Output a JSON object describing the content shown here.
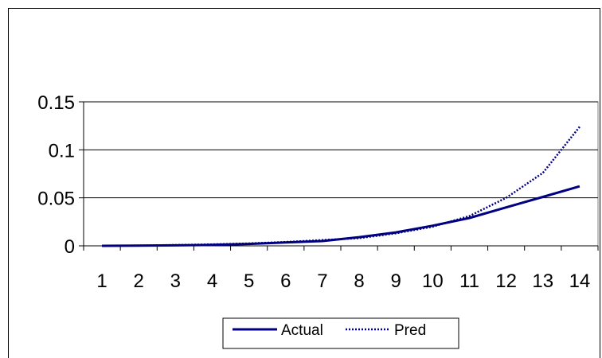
{
  "chart_data": {
    "type": "line",
    "title": "",
    "xlabel": "",
    "ylabel": "",
    "x": [
      1,
      2,
      3,
      4,
      5,
      6,
      7,
      8,
      9,
      10,
      11,
      12,
      13,
      14
    ],
    "ylim": [
      0,
      0.15
    ],
    "yticks": [
      0,
      0.05,
      0.1,
      0.15
    ],
    "ytick_labels": [
      "0",
      "0.05",
      "0.1",
      "0.15"
    ],
    "xtick_labels": [
      "1",
      "2",
      "3",
      "4",
      "5",
      "6",
      "7",
      "8",
      "9",
      "10",
      "11",
      "12",
      "13",
      "14"
    ],
    "grid": "horizontal",
    "legend_position": "bottom",
    "series": [
      {
        "name": "Actual",
        "style": "solid",
        "color": "#000080",
        "values": [
          0,
          0.0002,
          0.0005,
          0.001,
          0.002,
          0.0035,
          0.005,
          0.009,
          0.014,
          0.021,
          0.029,
          0.04,
          0.051,
          0.062
        ]
      },
      {
        "name": "Pred",
        "style": "dotted",
        "color": "#000080",
        "values": [
          0,
          0.0003,
          0.0008,
          0.0015,
          0.0025,
          0.004,
          0.006,
          0.008,
          0.013,
          0.02,
          0.031,
          0.05,
          0.076,
          0.124
        ]
      }
    ]
  }
}
